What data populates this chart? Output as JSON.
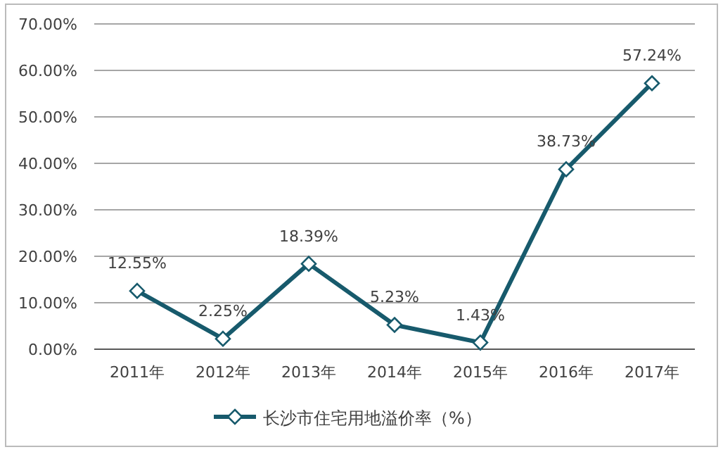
{
  "chart_data": {
    "type": "line",
    "categories": [
      "2011年",
      "2012年",
      "2013年",
      "2014年",
      "2015年",
      "2016年",
      "2017年"
    ],
    "series": [
      {
        "name": "长沙市住宅用地溢价率（%）",
        "color": "#175a6c",
        "values": [
          12.55,
          2.25,
          18.39,
          5.23,
          1.43,
          38.73,
          57.24
        ],
        "value_labels": [
          "12.55%",
          "2.25%",
          "18.39%",
          "5.23%",
          "1.43%",
          "38.73%",
          "57.24%"
        ]
      }
    ],
    "ylim": [
      0,
      70
    ],
    "yticks": [
      {
        "value": 0,
        "label": "0.00%"
      },
      {
        "value": 10,
        "label": "10.00%"
      },
      {
        "value": 20,
        "label": "20.00%"
      },
      {
        "value": 30,
        "label": "30.00%"
      },
      {
        "value": 40,
        "label": "40.00%"
      },
      {
        "value": 50,
        "label": "50.00%"
      },
      {
        "value": 60,
        "label": "60.00%"
      },
      {
        "value": 70,
        "label": "70.00%"
      }
    ],
    "grid": "y",
    "legend": "bottom",
    "marker": "diamond",
    "line_style": "solid"
  }
}
